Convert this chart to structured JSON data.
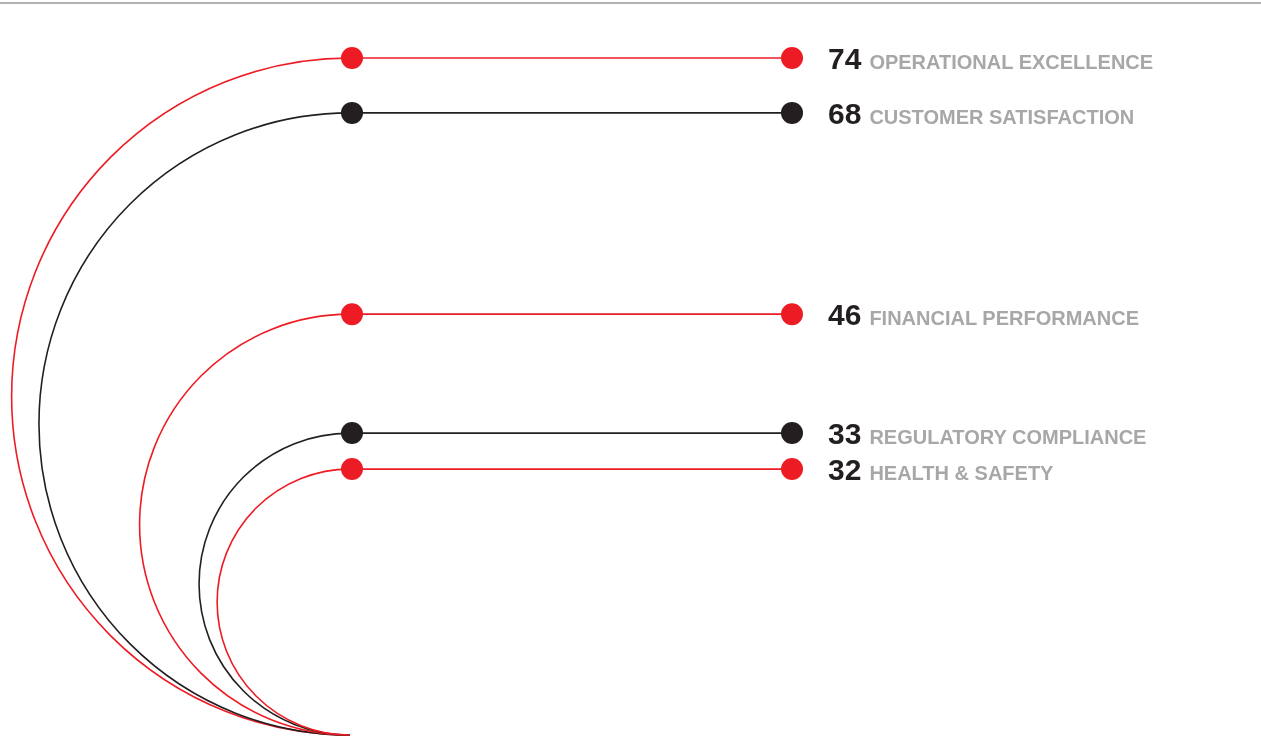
{
  "chart_data": {
    "type": "other",
    "categories": [
      "OPERATIONAL EXCELLENCE",
      "CUSTOMER SATISFACTION",
      "FINANCIAL PERFORMANCE",
      "REGULATORY COMPLIANCE",
      "HEALTH & SAFETY"
    ],
    "values": [
      74,
      68,
      46,
      33,
      32
    ],
    "colors": [
      "#ed1c24",
      "#231f20",
      "#ed1c24",
      "#231f20",
      "#ed1c24"
    ],
    "data_labels": true
  }
}
